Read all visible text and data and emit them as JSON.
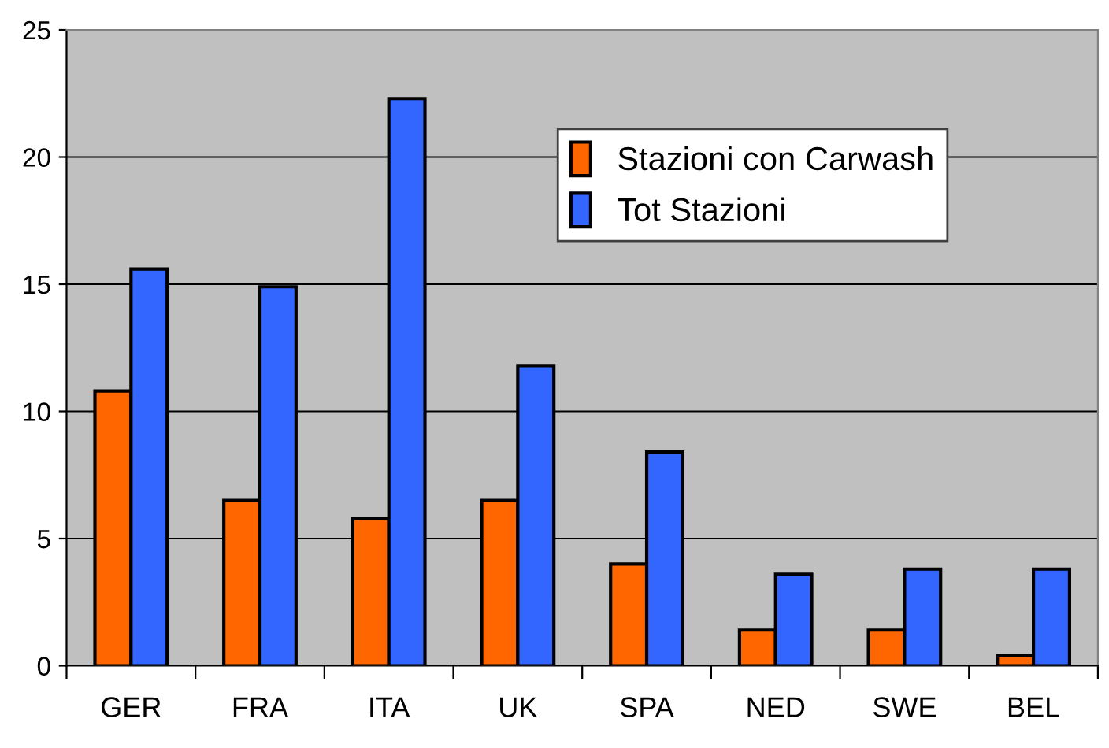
{
  "chart_data": {
    "type": "bar",
    "categories": [
      "GER",
      "FRA",
      "ITA",
      "UK",
      "SPA",
      "NED",
      "SWE",
      "BEL"
    ],
    "series": [
      {
        "name": "Stazioni con Carwash",
        "color": "#ff6600",
        "values": [
          10.8,
          6.5,
          5.8,
          6.5,
          4.0,
          1.4,
          1.4,
          0.4
        ]
      },
      {
        "name": "Tot Stazioni",
        "color": "#3366ff",
        "values": [
          15.6,
          14.9,
          22.3,
          11.8,
          8.4,
          3.6,
          3.8,
          3.8
        ]
      }
    ],
    "ylim": [
      0,
      25
    ],
    "yticks": [
      0,
      5,
      10,
      15,
      20,
      25
    ],
    "grid": "y",
    "legend": "top right"
  }
}
